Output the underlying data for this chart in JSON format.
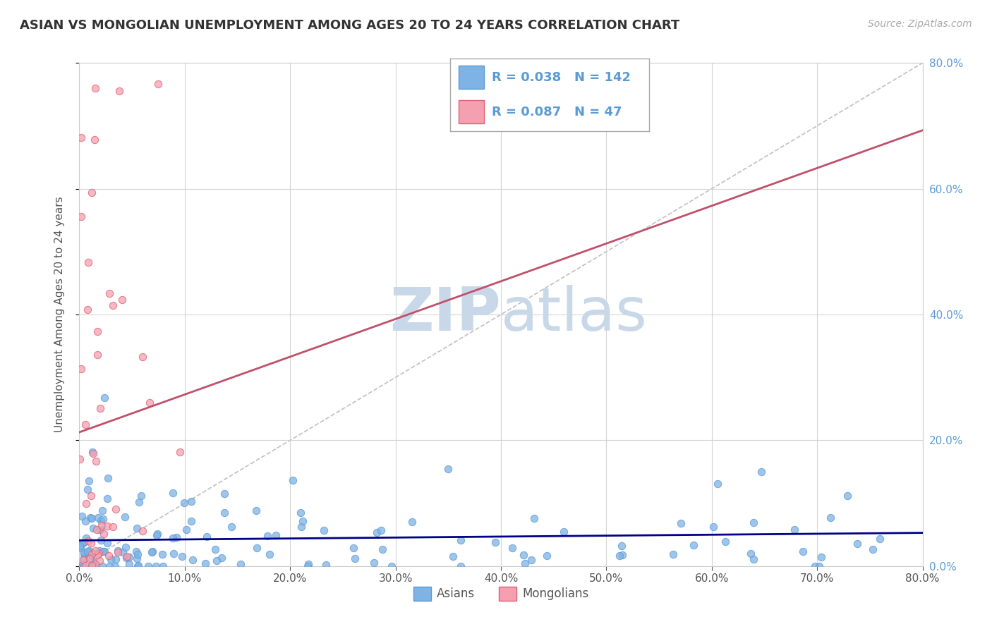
{
  "title": "ASIAN VS MONGOLIAN UNEMPLOYMENT AMONG AGES 20 TO 24 YEARS CORRELATION CHART",
  "source_text": "Source: ZipAtlas.com",
  "ylabel": "Unemployment Among Ages 20 to 24 years",
  "xlim": [
    0.0,
    0.8
  ],
  "ylim": [
    0.0,
    0.8
  ],
  "xtick_labels": [
    "0.0%",
    "10.0%",
    "20.0%",
    "30.0%",
    "40.0%",
    "50.0%",
    "60.0%",
    "70.0%",
    "80.0%"
  ],
  "xtick_vals": [
    0.0,
    0.1,
    0.2,
    0.3,
    0.4,
    0.5,
    0.6,
    0.7,
    0.8
  ],
  "ytick_labels": [
    "0.0%",
    "20.0%",
    "40.0%",
    "60.0%",
    "80.0%"
  ],
  "ytick_vals": [
    0.0,
    0.2,
    0.4,
    0.6,
    0.8
  ],
  "asian_color": "#7fb2e5",
  "mongolian_color": "#f4a0b0",
  "asian_edge_color": "#5b9bd5",
  "mongolian_edge_color": "#e06070",
  "asian_line_color": "#00008B",
  "mongolian_line_color": "#c0506a",
  "diag_line_color": "#c0c0c0",
  "legend_R_asian": "0.038",
  "legend_N_asian": "142",
  "legend_R_mongolian": "0.087",
  "legend_N_mongolian": "47",
  "watermark_zip": "ZIP",
  "watermark_atlas": "atlas",
  "watermark_color": "#c8d8e8",
  "background_color": "#ffffff",
  "grid_color": "#d0d0d0",
  "title_fontsize": 13,
  "source_fontsize": 10,
  "axis_label_fontsize": 11,
  "tick_fontsize": 11,
  "asian_n": 142,
  "mongolian_n": 47
}
